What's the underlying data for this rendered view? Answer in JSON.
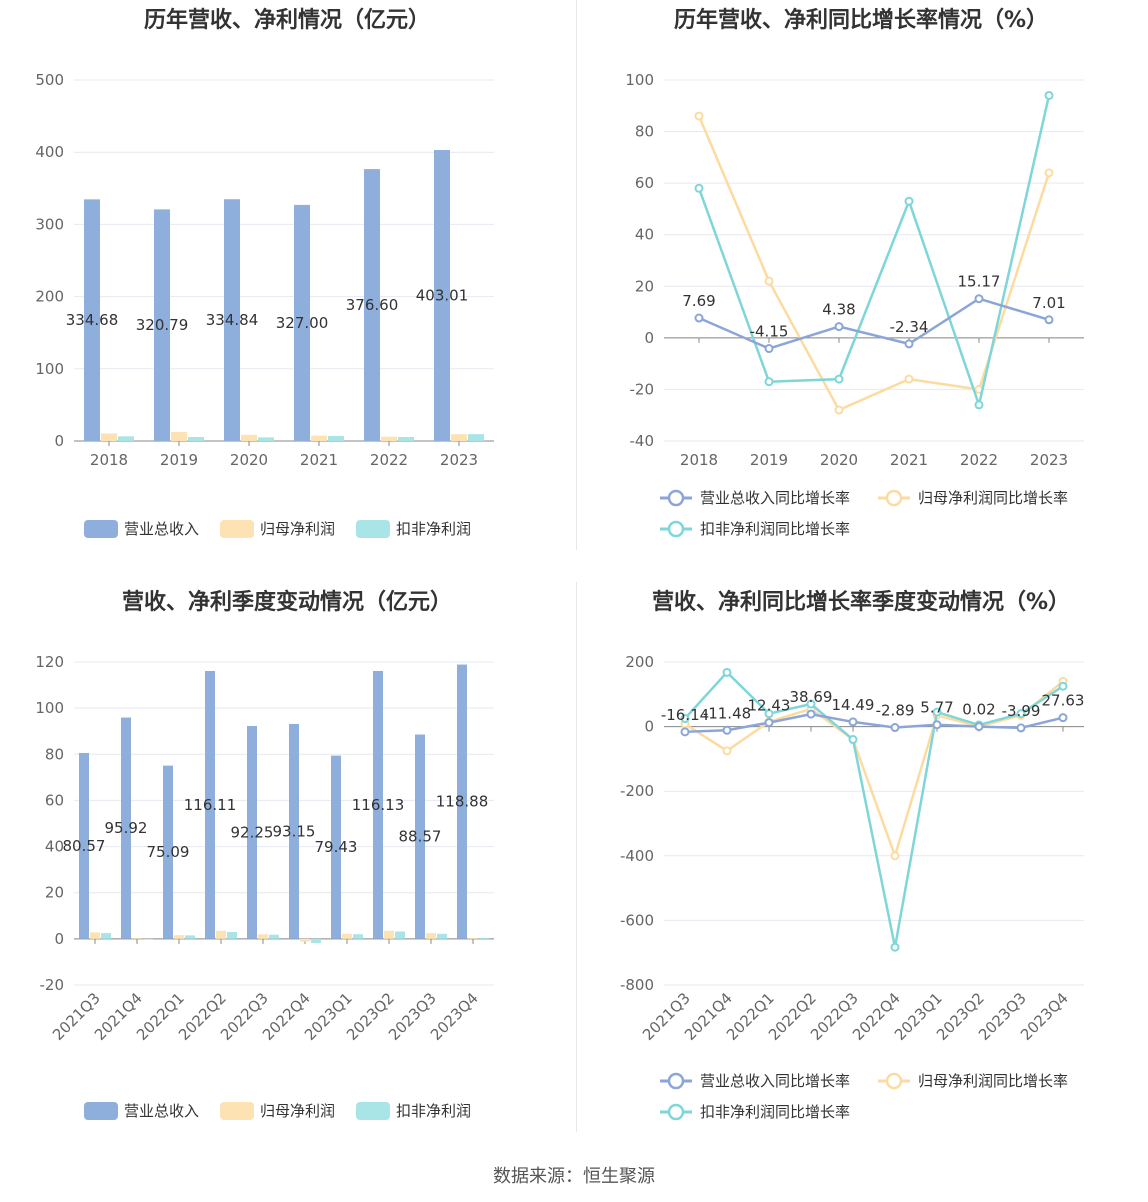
{
  "source_label": "数据来源：恒生聚源",
  "colors": {
    "revenue": "#8eaedc",
    "net_profit": "#fde3b3",
    "deducted_profit": "#a9e4e6",
    "revenue_line": "#8ca5d8",
    "net_line": "#fddba0",
    "deducted_line": "#7fd6d8"
  },
  "chart_data": [
    {
      "id": "annual_values",
      "type": "bar",
      "title": "历年营收、净利情况（亿元）",
      "categories": [
        "2018",
        "2019",
        "2020",
        "2021",
        "2022",
        "2023"
      ],
      "series": [
        {
          "name": "营业总收入",
          "values": [
            334.68,
            320.79,
            334.84,
            327.0,
            376.6,
            403.01
          ],
          "labels": [
            "334.68",
            "320.79",
            "334.84",
            "327.00",
            "376.60",
            "403.01"
          ]
        },
        {
          "name": "归母净利润",
          "values": [
            10.5,
            12.5,
            8.5,
            7.5,
            6.0,
            9.5
          ]
        },
        {
          "name": "扣非净利润",
          "values": [
            6.5,
            5.5,
            5.0,
            7.0,
            5.5,
            9.5
          ]
        }
      ],
      "ylim": [
        0,
        500
      ],
      "yticks": [
        0,
        100,
        200,
        300,
        400,
        500
      ],
      "legend": "bottom"
    },
    {
      "id": "annual_growth",
      "type": "line",
      "title": "历年营收、净利同比增长率情况（%）",
      "categories": [
        "2018",
        "2019",
        "2020",
        "2021",
        "2022",
        "2023"
      ],
      "series": [
        {
          "name": "营业总收入同比增长率",
          "values": [
            7.69,
            -4.15,
            4.38,
            -2.34,
            15.17,
            7.01
          ],
          "labels": [
            "7.69",
            "-4.15",
            "4.38",
            "-2.34",
            "15.17",
            "7.01"
          ]
        },
        {
          "name": "归母净利润同比增长率",
          "values": [
            86,
            22,
            -28,
            -16,
            -20,
            64
          ]
        },
        {
          "name": "扣非净利润同比增长率",
          "values": [
            58,
            -17,
            -16,
            53,
            -26,
            94
          ]
        }
      ],
      "ylim": [
        -40,
        100
      ],
      "yticks": [
        -40,
        -20,
        0,
        20,
        40,
        60,
        80,
        100
      ],
      "legend": "bottom"
    },
    {
      "id": "quarterly_values",
      "type": "bar",
      "title": "营收、净利季度变动情况（亿元）",
      "categories": [
        "2021Q3",
        "2021Q4",
        "2022Q1",
        "2022Q2",
        "2022Q3",
        "2022Q4",
        "2023Q1",
        "2023Q2",
        "2023Q3",
        "2023Q4"
      ],
      "series": [
        {
          "name": "营业总收入",
          "values": [
            80.57,
            95.92,
            75.09,
            116.11,
            92.25,
            93.15,
            79.43,
            116.13,
            88.57,
            118.88
          ],
          "labels": [
            "80.57",
            "95.92",
            "75.09",
            "116.11",
            "92.25",
            "93.15",
            "79.43",
            "116.13",
            "88.57",
            "118.88"
          ]
        },
        {
          "name": "归母净利润",
          "values": [
            2.8,
            0.3,
            1.6,
            3.5,
            2.0,
            -1.2,
            2.2,
            3.5,
            2.5,
            0.4
          ]
        },
        {
          "name": "扣非净利润",
          "values": [
            2.5,
            -0.2,
            1.5,
            3.0,
            1.8,
            -1.8,
            2.0,
            3.2,
            2.2,
            0.4
          ]
        }
      ],
      "ylim": [
        -20,
        120
      ],
      "yticks": [
        -20,
        0,
        20,
        40,
        60,
        80,
        100,
        120
      ],
      "legend": "bottom"
    },
    {
      "id": "quarterly_growth",
      "type": "line",
      "title": "营收、净利同比增长率季度变动情况（%）",
      "categories": [
        "2021Q3",
        "2021Q4",
        "2022Q1",
        "2022Q2",
        "2022Q3",
        "2022Q4",
        "2023Q1",
        "2023Q2",
        "2023Q3",
        "2023Q4"
      ],
      "series": [
        {
          "name": "营业总收入同比增长率",
          "values": [
            -16.14,
            -11.48,
            12.43,
            38.69,
            14.49,
            -2.89,
            5.77,
            0.02,
            -3.99,
            27.63
          ],
          "labels": [
            "-16.14",
            "-11.48",
            "12.43",
            "38.69",
            "14.49",
            "-2.89",
            "5.77",
            "0.02",
            "-3.99",
            "27.63"
          ]
        },
        {
          "name": "归母净利润同比增长率",
          "values": [
            8,
            -75,
            15,
            55,
            -40,
            -400,
            35,
            0,
            35,
            140
          ]
        },
        {
          "name": "扣非净利润同比增长率",
          "values": [
            25,
            168,
            40,
            70,
            -40,
            -683,
            45,
            5,
            40,
            125
          ]
        }
      ],
      "ylim": [
        -800,
        200
      ],
      "yticks": [
        -800,
        -600,
        -400,
        -200,
        0,
        200
      ],
      "legend": "bottom"
    }
  ]
}
